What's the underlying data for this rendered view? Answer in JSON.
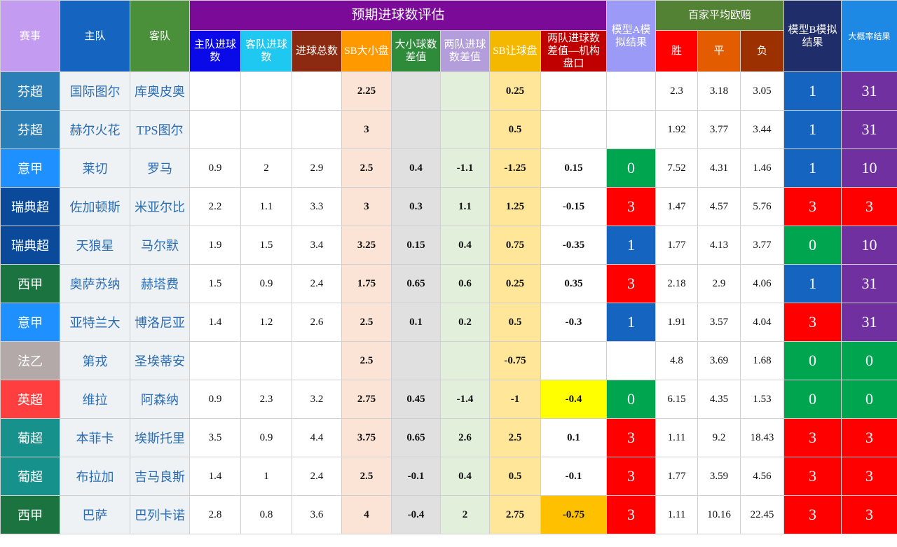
{
  "table": {
    "group_title": "预期进球数评估",
    "odds_title": "百家平均欧赔",
    "columns": [
      "赛事",
      "主队",
      "客队",
      "主队进球数",
      "客队进球数",
      "进球总数",
      "SB大小盘",
      "大小球数差值",
      "两队进球数差值",
      "SB让球盘",
      "两队进球数差值—机构盘口",
      "模型A模拟结果",
      "胜",
      "平",
      "负",
      "模型B模拟结果",
      "大概率结果"
    ],
    "rows": [
      [
        "芬超",
        "国际图尔",
        "库奥皮奥",
        null,
        null,
        null,
        2.25,
        null,
        null,
        0.25,
        null,
        null,
        2.3,
        3.18,
        3.05,
        1,
        31
      ],
      [
        "芬超",
        "赫尔火花",
        "TPS图尔",
        null,
        null,
        null,
        3,
        null,
        null,
        0.5,
        null,
        null,
        1.92,
        3.77,
        3.44,
        1,
        31
      ],
      [
        "意甲",
        "莱切",
        "罗马",
        0.9,
        2,
        2.9,
        2.5,
        0.4,
        -1.1,
        -1.25,
        0.15,
        0,
        7.52,
        4.31,
        1.46,
        1,
        10
      ],
      [
        "瑞典超",
        "佐加顿斯",
        "米亚尔比",
        2.2,
        1.1,
        3.3,
        3,
        0.3,
        1.1,
        1.25,
        -0.15,
        3,
        1.47,
        4.57,
        5.76,
        3,
        3
      ],
      [
        "瑞典超",
        "天狼星",
        "马尔默",
        1.9,
        1.5,
        3.4,
        3.25,
        0.15,
        0.4,
        0.75,
        -0.35,
        1,
        1.77,
        4.13,
        3.77,
        0,
        10
      ],
      [
        "西甲",
        "奥萨苏纳",
        "赫塔费",
        1.5,
        0.9,
        2.4,
        1.75,
        0.65,
        0.6,
        0.25,
        0.35,
        3,
        2.18,
        2.9,
        4.06,
        1,
        31
      ],
      [
        "意甲",
        "亚特兰大",
        "博洛尼亚",
        1.4,
        1.2,
        2.6,
        2.5,
        0.1,
        0.2,
        0.5,
        -0.3,
        1,
        1.91,
        3.57,
        4.04,
        3,
        31
      ],
      [
        "法乙",
        "第戎",
        "圣埃蒂安",
        null,
        null,
        null,
        2.5,
        null,
        null,
        -0.75,
        null,
        null,
        4.8,
        3.69,
        1.68,
        0,
        0
      ],
      [
        "英超",
        "维拉",
        "阿森纳",
        0.9,
        2.3,
        3.2,
        2.75,
        0.45,
        -1.4,
        -1,
        -0.4,
        0,
        6.15,
        4.35,
        1.53,
        0,
        0
      ],
      [
        "葡超",
        "本菲卡",
        "埃斯托里",
        3.5,
        0.9,
        4.4,
        3.75,
        0.65,
        2.6,
        2.5,
        0.1,
        3,
        1.11,
        9.2,
        18.43,
        3,
        3
      ],
      [
        "葡超",
        "布拉加",
        "吉马良斯",
        1.4,
        1,
        2.4,
        2.5,
        -0.1,
        0.4,
        0.5,
        -0.1,
        3,
        1.77,
        3.59,
        4.56,
        3,
        3
      ],
      [
        "西甲",
        "巴萨",
        "巴列卡诺",
        2.8,
        0.8,
        3.6,
        4,
        -0.4,
        2,
        2.75,
        -0.75,
        3,
        1.11,
        10.16,
        22.45,
        3,
        3
      ]
    ]
  }
}
